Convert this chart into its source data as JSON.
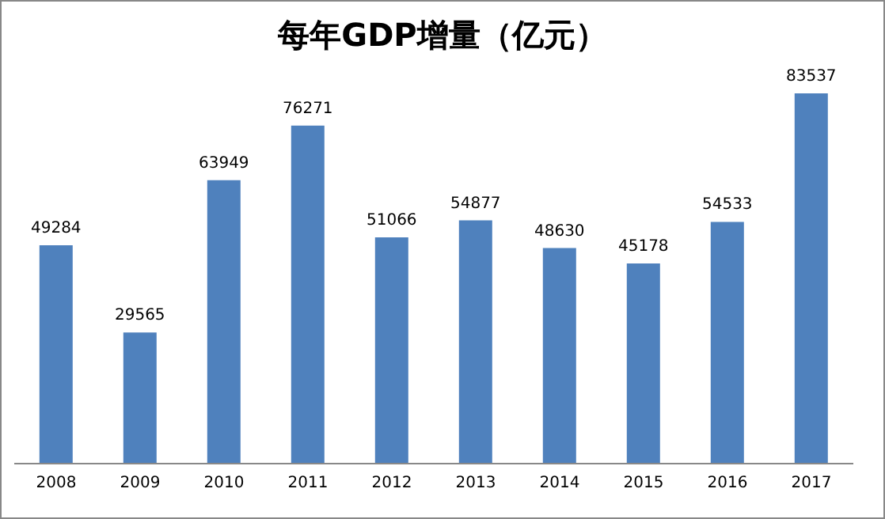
{
  "chart_data": {
    "type": "bar",
    "title": "每年GDP增量（亿元）",
    "categories": [
      "2008",
      "2009",
      "2010",
      "2011",
      "2012",
      "2013",
      "2014",
      "2015",
      "2016",
      "2017"
    ],
    "values": [
      49284,
      29565,
      63949,
      76271,
      51066,
      54877,
      48630,
      45178,
      54533,
      83537
    ],
    "color": "#4f81bd",
    "data_labels": true
  }
}
